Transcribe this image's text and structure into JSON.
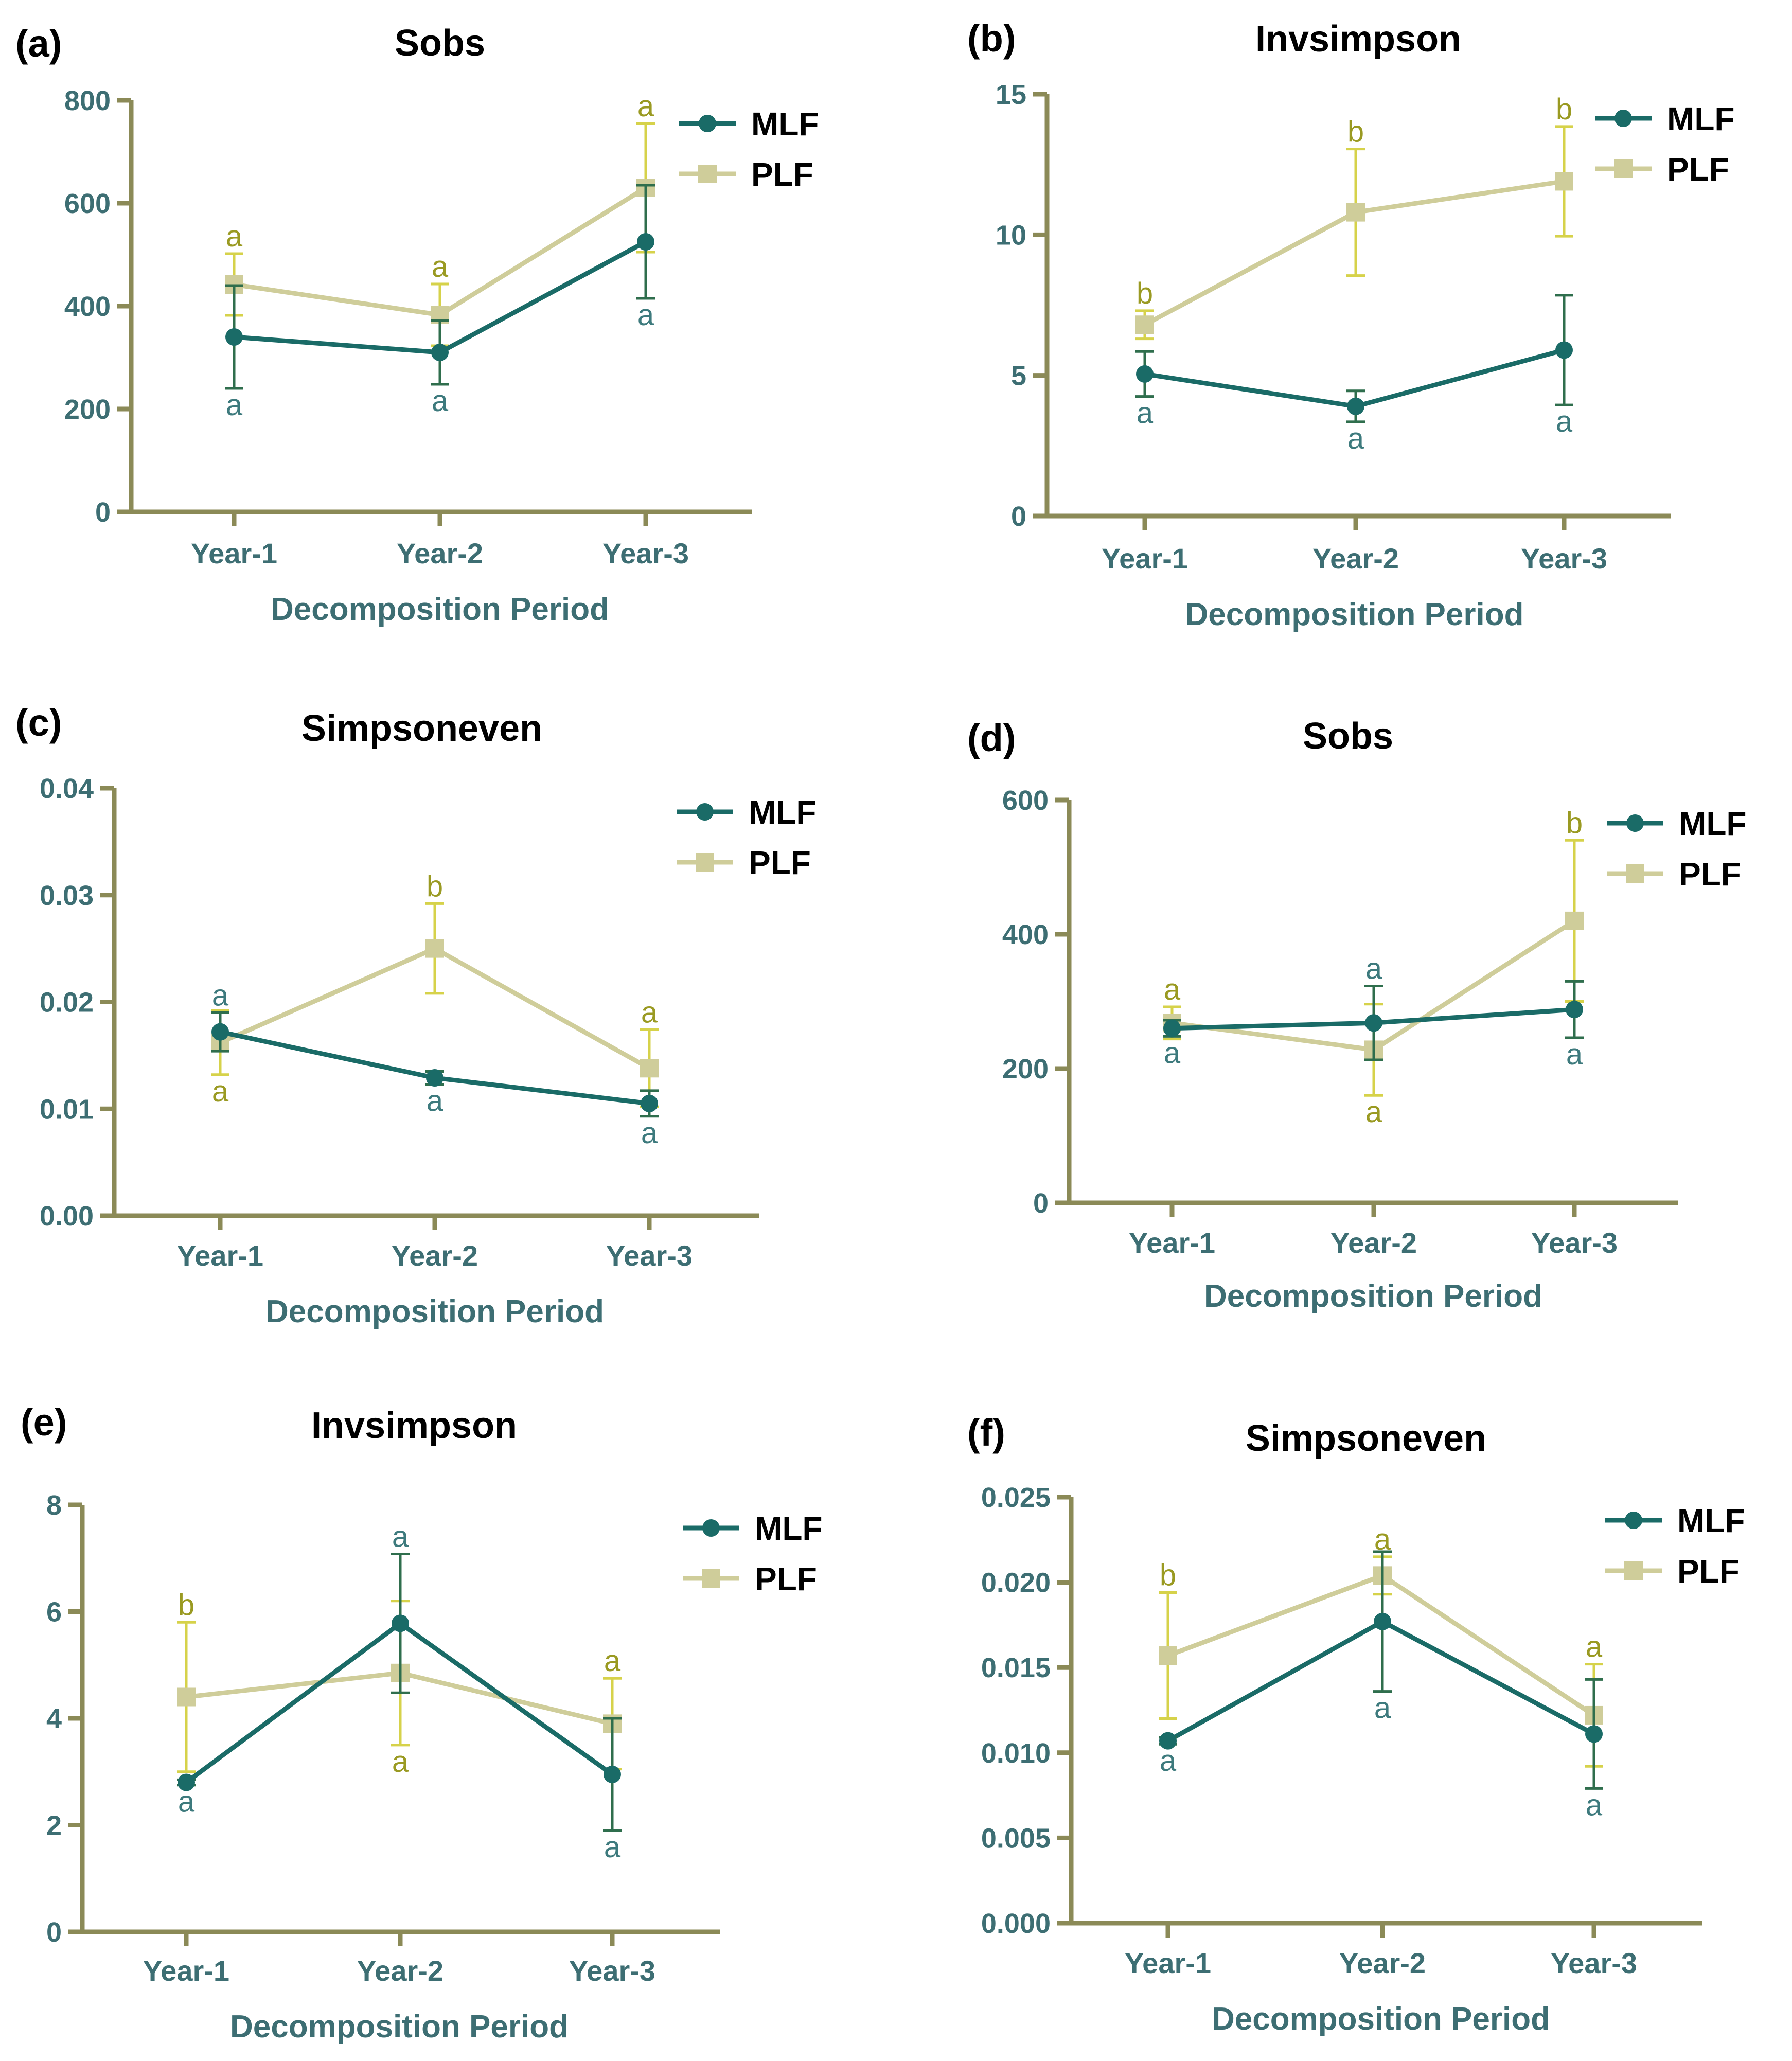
{
  "colors": {
    "MLF": "#1a6b67",
    "PLF": "#cfcd9a",
    "MLF_text": "#3d7a7d",
    "PLF_text": "#9a9a22",
    "axis": "#8b8a57",
    "label": "#3d6e73"
  },
  "icons": {
    "MLF": "circle-marker-icon",
    "PLF": "square-marker-icon"
  },
  "chart_data": [
    {
      "type": "line",
      "panel": "(a)",
      "title": "Sobs",
      "xlabel": "Decomposition Period",
      "ylabel": "",
      "categories": [
        "Year-1",
        "Year-2",
        "Year-3"
      ],
      "ylim": [
        0,
        800
      ],
      "yticks": [
        "0",
        "200",
        "400",
        "600",
        "800"
      ],
      "legend": "top-right",
      "grid": false,
      "series": [
        {
          "name": "MLF",
          "values": [
            340,
            310,
            525
          ],
          "errors": [
            100,
            62,
            110
          ],
          "letters": [
            "a",
            "a",
            "a"
          ],
          "letter_side": "below"
        },
        {
          "name": "PLF",
          "values": [
            442,
            383,
            630
          ],
          "errors": [
            60,
            60,
            125
          ],
          "letters": [
            "a",
            "a",
            "a"
          ],
          "letter_side": "above"
        }
      ]
    },
    {
      "type": "line",
      "panel": "(b)",
      "title": "Invsimpson",
      "xlabel": "Decomposition Period",
      "ylabel": "",
      "categories": [
        "Year-1",
        "Year-2",
        "Year-3"
      ],
      "ylim": [
        0,
        15
      ],
      "yticks": [
        "0",
        "5",
        "10",
        "15"
      ],
      "legend": "top-right",
      "grid": false,
      "series": [
        {
          "name": "MLF",
          "values": [
            5.05,
            3.9,
            5.9
          ],
          "errors": [
            0.8,
            0.55,
            1.95
          ],
          "letters": [
            "a",
            "a",
            "a"
          ],
          "letter_side": "mixed"
        },
        {
          "name": "PLF",
          "values": [
            6.8,
            10.8,
            11.9
          ],
          "errors": [
            0.5,
            2.25,
            1.95
          ],
          "letters": [
            "b",
            "b",
            "b"
          ],
          "letter_side": "above"
        }
      ]
    },
    {
      "type": "line",
      "panel": "(c)",
      "title": "Simpsoneven",
      "xlabel": "Decomposition Period",
      "ylabel": "",
      "categories": [
        "Year-1",
        "Year-2",
        "Year-3"
      ],
      "ylim": [
        0,
        0.04
      ],
      "yticks": [
        "0.00",
        "0.01",
        "0.02",
        "0.03",
        "0.04"
      ],
      "legend": "top-right",
      "grid": false,
      "series": [
        {
          "name": "MLF",
          "values": [
            0.0172,
            0.0129,
            0.0105
          ],
          "errors": [
            0.0018,
            0.0006,
            0.0012
          ],
          "letters": [
            "a",
            "a",
            "a"
          ],
          "letter_side": "mixed"
        },
        {
          "name": "PLF",
          "values": [
            0.0162,
            0.025,
            0.0138
          ],
          "errors": [
            0.003,
            0.0042,
            0.0036
          ],
          "letters": [
            "a",
            "b",
            "a"
          ],
          "letter_side": "mixed"
        }
      ]
    },
    {
      "type": "line",
      "panel": "(d)",
      "title": "Sobs",
      "xlabel": "Decomposition Period",
      "ylabel": "",
      "categories": [
        "Year-1",
        "Year-2",
        "Year-3"
      ],
      "ylim": [
        0,
        600
      ],
      "yticks": [
        "0",
        "200",
        "400",
        "600"
      ],
      "legend": "top-right",
      "grid": false,
      "series": [
        {
          "name": "MLF",
          "values": [
            260,
            268,
            288
          ],
          "errors": [
            12,
            55,
            42
          ],
          "letters": [
            "a",
            "a",
            "a"
          ],
          "letter_side": "mixed"
        },
        {
          "name": "PLF",
          "values": [
            268,
            228,
            420
          ],
          "errors": [
            24,
            68,
            120
          ],
          "letters": [
            "a",
            "a",
            "b"
          ],
          "letter_side": "mixed"
        }
      ]
    },
    {
      "type": "line",
      "panel": "(e)",
      "title": "Invsimpson",
      "xlabel": "Decomposition Period",
      "ylabel": "",
      "categories": [
        "Year-1",
        "Year-2",
        "Year-3"
      ],
      "ylim": [
        0,
        8
      ],
      "yticks": [
        "0",
        "2",
        "4",
        "6",
        "8"
      ],
      "legend": "top-right",
      "grid": false,
      "series": [
        {
          "name": "MLF",
          "values": [
            2.8,
            5.78,
            2.95
          ],
          "errors": [
            0.05,
            1.3,
            1.05
          ],
          "letters": [
            "a",
            "a",
            "a"
          ],
          "letter_side": "mixed"
        },
        {
          "name": "PLF",
          "values": [
            4.4,
            4.85,
            3.9
          ],
          "errors": [
            1.4,
            1.35,
            0.85
          ],
          "letters": [
            "b",
            "a",
            "a"
          ],
          "letter_side": "mixed"
        }
      ]
    },
    {
      "type": "line",
      "panel": "(f)",
      "title": "Simpsoneven",
      "xlabel": "Decomposition Period",
      "ylabel": "",
      "categories": [
        "Year-1",
        "Year-2",
        "Year-3"
      ],
      "ylim": [
        0,
        0.025
      ],
      "yticks": [
        "0.000",
        "0.005",
        "0.010",
        "0.015",
        "0.020",
        "0.025"
      ],
      "legend": "top-right",
      "grid": false,
      "series": [
        {
          "name": "MLF",
          "values": [
            0.0107,
            0.0177,
            0.0111
          ],
          "errors": [
            0.0002,
            0.0041,
            0.0032
          ],
          "letters": [
            "a",
            "a",
            "a"
          ],
          "letter_side": "below"
        },
        {
          "name": "PLF",
          "values": [
            0.0157,
            0.0204,
            0.0122
          ],
          "errors": [
            0.0037,
            0.0011,
            0.003
          ],
          "letters": [
            "b",
            "a",
            "a"
          ],
          "letter_side": "above"
        }
      ]
    }
  ]
}
